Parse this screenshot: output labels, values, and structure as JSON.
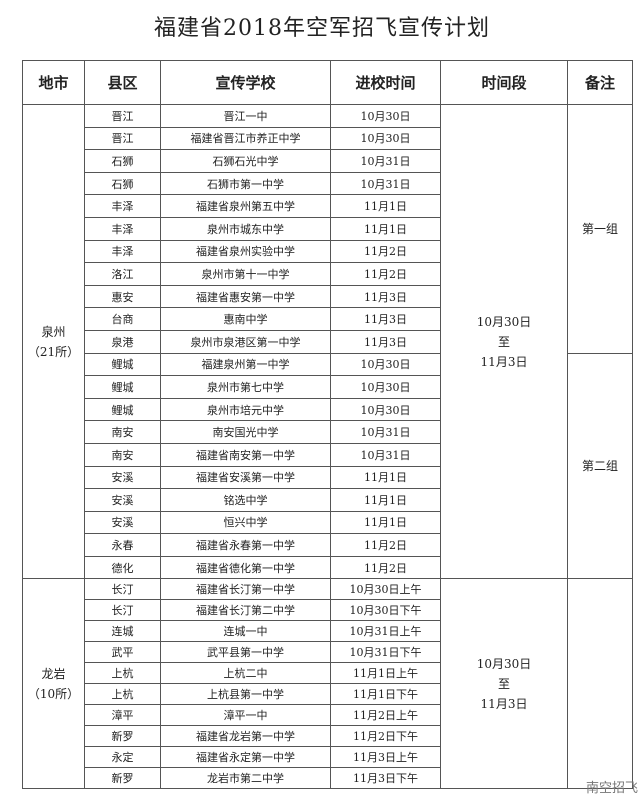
{
  "title": "福建省2018年空军招飞宣传计划",
  "headers": [
    "地市",
    "县区",
    "宣传学校",
    "进校时间",
    "时间段",
    "备注"
  ],
  "sections": [
    {
      "city": [
        "泉州",
        "（21所）"
      ],
      "period": [
        "10月30日",
        "至",
        "11月3日"
      ],
      "groups": [
        {
          "label": "第一组",
          "rows": [
            [
              "晋江",
              "晋江一中",
              "10月30日"
            ],
            [
              "晋江",
              "福建省晋江市养正中学",
              "10月30日"
            ],
            [
              "石狮",
              "石狮石光中学",
              "10月31日"
            ],
            [
              "石狮",
              "石狮市第一中学",
              "10月31日"
            ],
            [
              "丰泽",
              "福建省泉州第五中学",
              "11月1日"
            ],
            [
              "丰泽",
              "泉州市城东中学",
              "11月1日"
            ],
            [
              "丰泽",
              "福建省泉州实验中学",
              "11月2日"
            ],
            [
              "洛江",
              "泉州市第十一中学",
              "11月2日"
            ],
            [
              "惠安",
              "福建省惠安第一中学",
              "11月3日"
            ],
            [
              "台商",
              "惠南中学",
              "11月3日"
            ],
            [
              "泉港",
              "泉州市泉港区第一中学",
              "11月3日"
            ]
          ]
        },
        {
          "label": "第二组",
          "rows": [
            [
              "鲤城",
              "福建泉州第一中学",
              "10月30日"
            ],
            [
              "鲤城",
              "泉州市第七中学",
              "10月30日"
            ],
            [
              "鲤城",
              "泉州市培元中学",
              "10月30日"
            ],
            [
              "南安",
              "南安国光中学",
              "10月31日"
            ],
            [
              "南安",
              "福建省南安第一中学",
              "10月31日"
            ],
            [
              "安溪",
              "福建省安溪第一中学",
              "11月1日"
            ],
            [
              "安溪",
              "铭选中学",
              "11月1日"
            ],
            [
              "安溪",
              "恒兴中学",
              "11月1日"
            ],
            [
              "永春",
              "福建省永春第一中学",
              "11月2日"
            ],
            [
              "德化",
              "福建省德化第一中学",
              "11月2日"
            ]
          ]
        }
      ]
    },
    {
      "city": [
        "龙岩",
        "（10所）"
      ],
      "period": [
        "10月30日",
        "至",
        "11月3日"
      ],
      "groups": [
        {
          "rows": [
            [
              "长汀",
              "福建省长汀第一中学",
              "10月30日上午"
            ],
            [
              "长汀",
              "福建省长汀第二中学",
              "10月30日下午"
            ],
            [
              "连城",
              "连城一中",
              "10月31日上午"
            ],
            [
              "武平",
              "武平县第一中学",
              "10月31日下午"
            ],
            [
              "上杭",
              "上杭二中",
              "11月1日上午"
            ],
            [
              "上杭",
              "上杭县第一中学",
              "11月1日下午"
            ],
            [
              "漳平",
              "漳平一中",
              "11月2日上午"
            ],
            [
              "新罗",
              "福建省龙岩第一中学",
              "11月2日下午"
            ],
            [
              "永定",
              "福建省永定第一中学",
              "11月3日上午"
            ],
            [
              "新罗",
              "龙岩市第二中学",
              "11月3日下午"
            ]
          ]
        }
      ]
    }
  ],
  "watermark": "南空招飞"
}
